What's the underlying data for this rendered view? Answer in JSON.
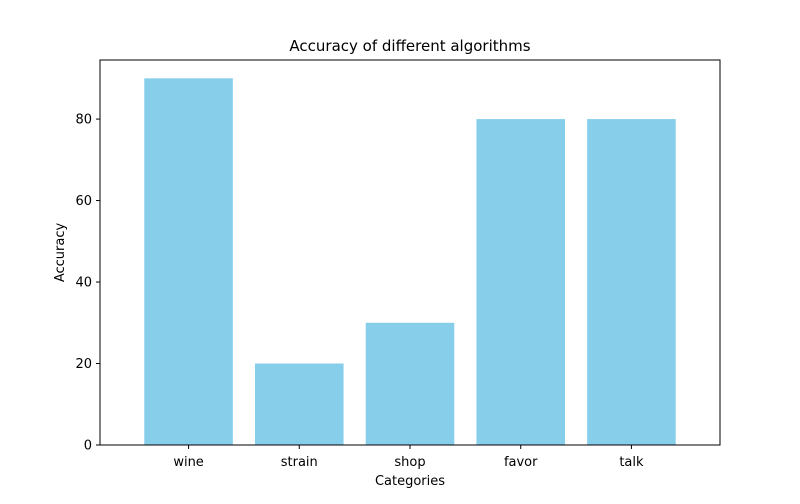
{
  "chart_data": {
    "type": "bar",
    "title": "Accuracy of different algorithms",
    "xlabel": "Categories",
    "ylabel": "Accuracy",
    "categories": [
      "wine",
      "strain",
      "shop",
      "favor",
      "talk"
    ],
    "values": [
      90,
      20,
      30,
      80,
      80
    ],
    "ylim": [
      0,
      94.5
    ],
    "yticks": [
      0,
      20,
      40,
      60,
      80
    ],
    "bar_color": "#87CEEB",
    "grid": false,
    "legend": "none"
  }
}
